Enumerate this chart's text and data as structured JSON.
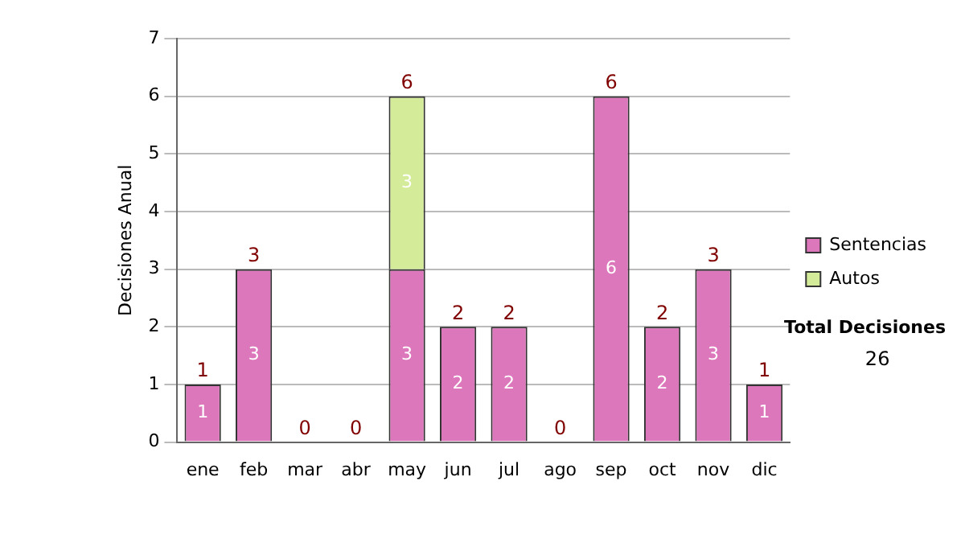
{
  "chart_data": {
    "type": "bar",
    "stacked": true,
    "ylabel": "Decisiones Anual",
    "categories": [
      "ene",
      "feb",
      "mar",
      "abr",
      "may",
      "jun",
      "jul",
      "ago",
      "sep",
      "oct",
      "nov",
      "dic"
    ],
    "series": [
      {
        "name": "Sentencias",
        "color": "#dd77bb",
        "values": [
          1,
          3,
          0,
          0,
          3,
          2,
          2,
          0,
          6,
          2,
          3,
          1
        ],
        "value_labels": [
          "1",
          "3",
          null,
          null,
          "3",
          "2",
          "2",
          null,
          "6",
          "2",
          "3",
          "1"
        ]
      },
      {
        "name": "Autos",
        "color": "#d4ec9a",
        "values": [
          0,
          0,
          0,
          0,
          3,
          0,
          0,
          0,
          0,
          0,
          0,
          0
        ],
        "value_labels": [
          null,
          null,
          null,
          null,
          "3",
          null,
          null,
          null,
          null,
          null,
          null,
          null
        ]
      }
    ],
    "totals": [
      "1",
      "3",
      "0",
      "0",
      "6",
      "2",
      "2",
      "0",
      "6",
      "2",
      "3",
      "1"
    ],
    "ylim": [
      0,
      7
    ],
    "yticks": [
      0,
      1,
      2,
      3,
      4,
      5,
      6,
      7
    ],
    "grid": "y",
    "legend": "right",
    "annotations": [
      "Total Decisiones",
      "26"
    ]
  }
}
